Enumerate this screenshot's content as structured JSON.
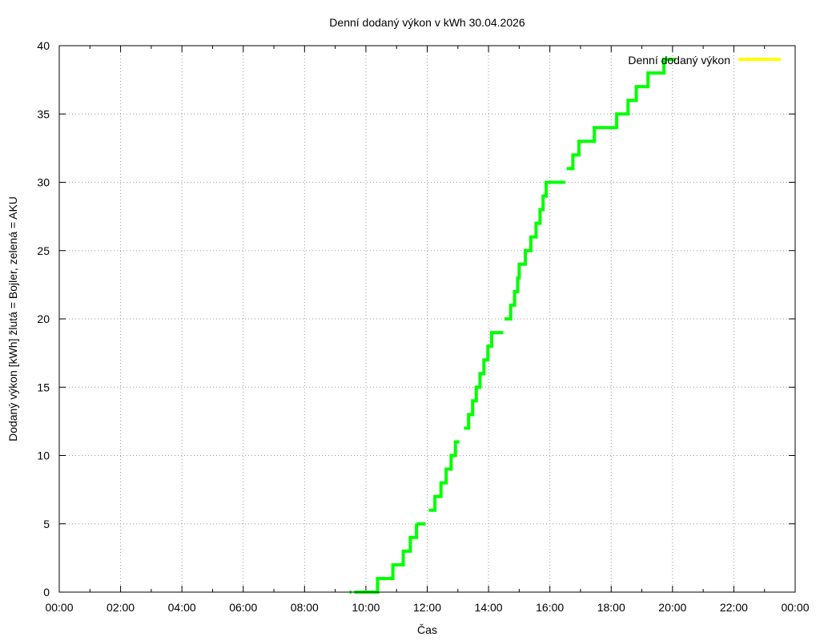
{
  "chart_data": {
    "type": "line",
    "title": "Denní dodaný výkon v kWh 30.04.2026",
    "xlabel": "Čas",
    "ylabel": "Dodaný výkon [kWh]  žlutá = Bojler, zelená = AKU",
    "xlim": [
      0,
      24
    ],
    "ylim": [
      0,
      40
    ],
    "x_tick_labels": [
      "00:00",
      "02:00",
      "04:00",
      "06:00",
      "08:00",
      "10:00",
      "12:00",
      "14:00",
      "16:00",
      "18:00",
      "20:00",
      "22:00",
      "00:00"
    ],
    "y_tick_labels": [
      "0",
      "5",
      "10",
      "15",
      "20",
      "25",
      "30",
      "35",
      "40"
    ],
    "grid": true,
    "legend_position": "top-right",
    "series": [
      {
        "name": "Denní dodaný výkon",
        "color": "#ffff00",
        "legend_only": true,
        "x": [],
        "y": []
      },
      {
        "color": "#00ff00",
        "step": true,
        "segments": [
          {
            "x": [
              9.47,
              9.53
            ],
            "y": [
              0,
              0
            ]
          },
          {
            "x": [
              9.62,
              10.38,
              10.38,
              10.88,
              10.88,
              11.22,
              11.22,
              11.45,
              11.45,
              11.65,
              11.65
            ],
            "y": [
              0,
              0,
              1,
              1,
              2,
              2,
              3,
              3,
              4,
              4,
              5
            ]
          },
          {
            "x": [
              11.65,
              11.95
            ],
            "y": [
              5,
              5
            ]
          },
          {
            "x": [
              12.05,
              12.25,
              12.25,
              12.45,
              12.45,
              12.62,
              12.62,
              12.78,
              12.78,
              12.92,
              12.92,
              13.05
            ],
            "y": [
              6,
              6,
              7,
              7,
              8,
              8,
              9,
              9,
              10,
              10,
              11,
              11
            ]
          },
          {
            "x": [
              13.2,
              13.35,
              13.35,
              13.48,
              13.48,
              13.6,
              13.6,
              13.72,
              13.72,
              13.85,
              13.85,
              13.98,
              13.98,
              14.1,
              14.1,
              14.22,
              14.22,
              14.35,
              14.35,
              14.48
            ],
            "y": [
              12,
              12,
              13,
              13,
              14,
              14,
              15,
              15,
              16,
              16,
              17,
              17,
              18,
              18,
              19,
              19,
              19,
              19,
              19,
              19
            ]
          },
          {
            "x": [
              14.52,
              14.72,
              14.72,
              14.85,
              14.85,
              14.95,
              14.95,
              15.0,
              15.0,
              15.2,
              15.2,
              15.38,
              15.38,
              15.55,
              15.55,
              15.68,
              15.68,
              15.78,
              15.78,
              15.88,
              15.88,
              16.02,
              16.02,
              16.18,
              16.18,
              16.35,
              16.35,
              16.5
            ],
            "y": [
              20,
              20,
              21,
              21,
              22,
              22,
              23,
              23,
              24,
              24,
              25,
              25,
              26,
              26,
              27,
              27,
              28,
              28,
              29,
              29,
              30,
              30,
              30,
              30,
              30,
              30,
              30,
              30
            ]
          },
          {
            "x": [
              16.55,
              16.75,
              16.75,
              16.95,
              16.95,
              17.45,
              17.45,
              18.18,
              18.18,
              18.55,
              18.55,
              18.82,
              18.82,
              19.2,
              19.2,
              19.72,
              19.72,
              20.1
            ],
            "y": [
              31,
              31,
              32,
              32,
              33,
              33,
              34,
              34,
              35,
              35,
              36,
              36,
              37,
              37,
              38,
              38,
              39,
              39
            ]
          }
        ]
      }
    ]
  }
}
